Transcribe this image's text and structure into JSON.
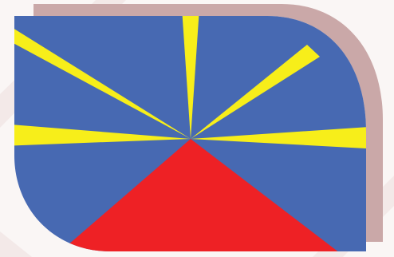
{
  "graphic": {
    "subject": "flag-emblem",
    "colors": {
      "background": "#faf6f5",
      "backdrop": "#f3e9e8",
      "shadow": "#caa8a8",
      "field": "#4769b2",
      "rays": "#f7ee1a",
      "triangle": "#ee2125"
    }
  }
}
